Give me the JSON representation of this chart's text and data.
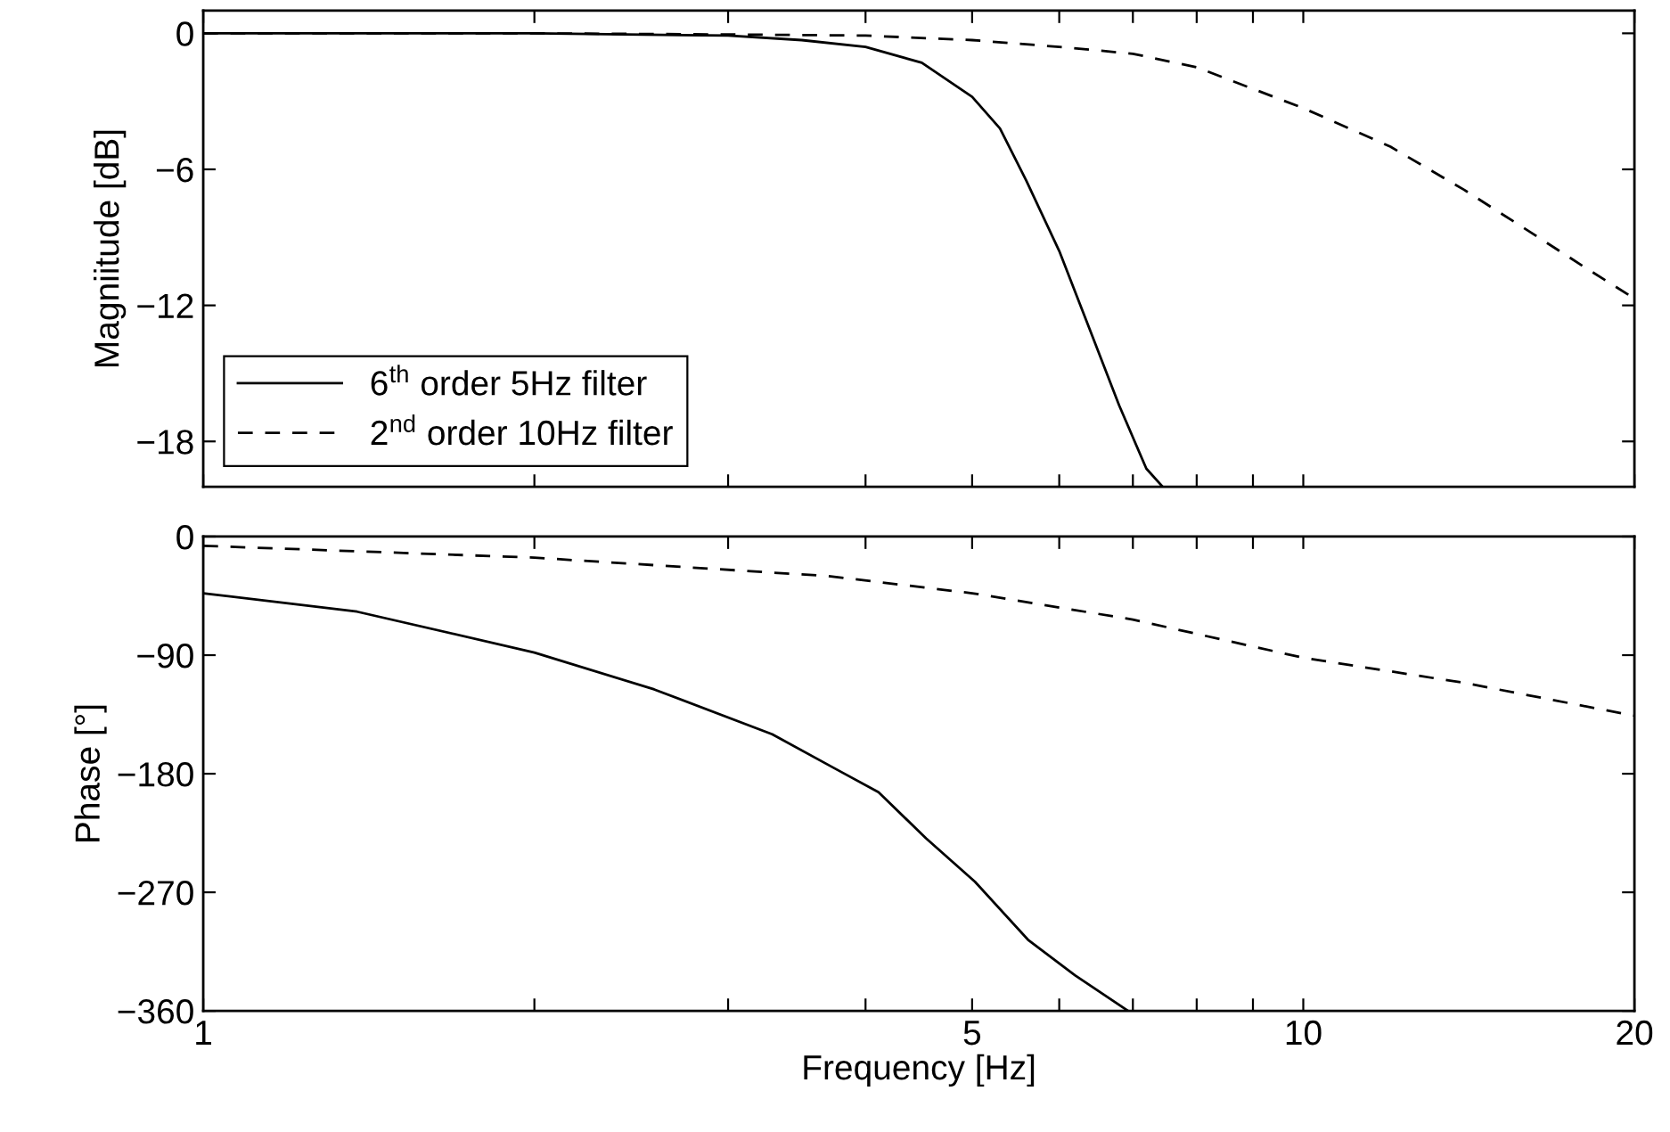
{
  "chart_data": [
    {
      "type": "line",
      "ylabel": "Magniitude [dB]",
      "log": "x",
      "xlim": [
        1,
        20
      ],
      "ylim": [
        -20,
        1
      ],
      "xticks": [
        1,
        {
          "value": 2,
          "label": null
        },
        {
          "value": 3,
          "label": null
        },
        {
          "value": 4,
          "label": null
        },
        5,
        {
          "value": 6,
          "label": null
        },
        {
          "value": 7,
          "label": null
        },
        {
          "value": 8,
          "label": null
        },
        {
          "value": 9,
          "label": null
        },
        10,
        20
      ],
      "yticks": [
        0,
        -6,
        -12,
        -18
      ],
      "tick_labels": "y",
      "grid": false,
      "legend": "bottom left",
      "series": [
        {
          "name": "6$^{th}$ order 5Hz filter",
          "color": "#000000",
          "line_style": "solid",
          "x": [
            1,
            2,
            3,
            3.5,
            4,
            4.5,
            5,
            5.3,
            5.6,
            6,
            6.4,
            6.8,
            7.2,
            7.45
          ],
          "values": [
            0,
            0,
            -0.1,
            -0.3,
            -0.6,
            -1.3,
            -2.8,
            -4.2,
            -6.5,
            -9.6,
            -13.1,
            -16.4,
            -19.2,
            -20
          ]
        },
        {
          "name": "2$^{nd}$ order 10Hz filter",
          "color": "#000000",
          "line_style": "dashed",
          "x": [
            1,
            2,
            3,
            4,
            5,
            6,
            7,
            8,
            10,
            12,
            14,
            16,
            18,
            20
          ],
          "values": [
            0,
            0,
            -0.05,
            -0.1,
            -0.3,
            -0.6,
            -0.9,
            -1.5,
            -3.3,
            -5.0,
            -6.9,
            -8.7,
            -10.3,
            -11.7
          ]
        }
      ]
    },
    {
      "type": "line",
      "xlabel": "Frequency [Hz]",
      "ylabel": "Phase [°]",
      "log": "x",
      "xlim": [
        1,
        20
      ],
      "ylim": [
        -360,
        0
      ],
      "xticks": [
        1,
        {
          "value": 2,
          "label": null
        },
        {
          "value": 3,
          "label": null
        },
        {
          "value": 4,
          "label": null
        },
        5,
        {
          "value": 6,
          "label": null
        },
        {
          "value": 7,
          "label": null
        },
        {
          "value": 8,
          "label": null
        },
        {
          "value": 9,
          "label": null
        },
        10,
        20
      ],
      "yticks": [
        0,
        -90,
        -180,
        -270,
        -360
      ],
      "grid": false,
      "series": [
        {
          "color": "#000000",
          "line_style": "solid",
          "x": [
            1,
            1.38,
            2.0,
            2.57,
            3.29,
            3.77,
            4.11,
            4.54,
            5.03,
            5.62,
            6.2,
            6.93
          ],
          "values": [
            -43,
            -57,
            -88,
            -116,
            -150,
            -177,
            -194,
            -229,
            -262,
            -306,
            -333,
            -360
          ]
        },
        {
          "color": "#000000",
          "line_style": "dashed",
          "x": [
            1,
            2,
            3.7,
            5,
            7,
            10,
            14,
            20
          ],
          "values": [
            -7,
            -16,
            -30,
            -43,
            -63,
            -92,
            -111,
            -136
          ]
        }
      ]
    }
  ]
}
